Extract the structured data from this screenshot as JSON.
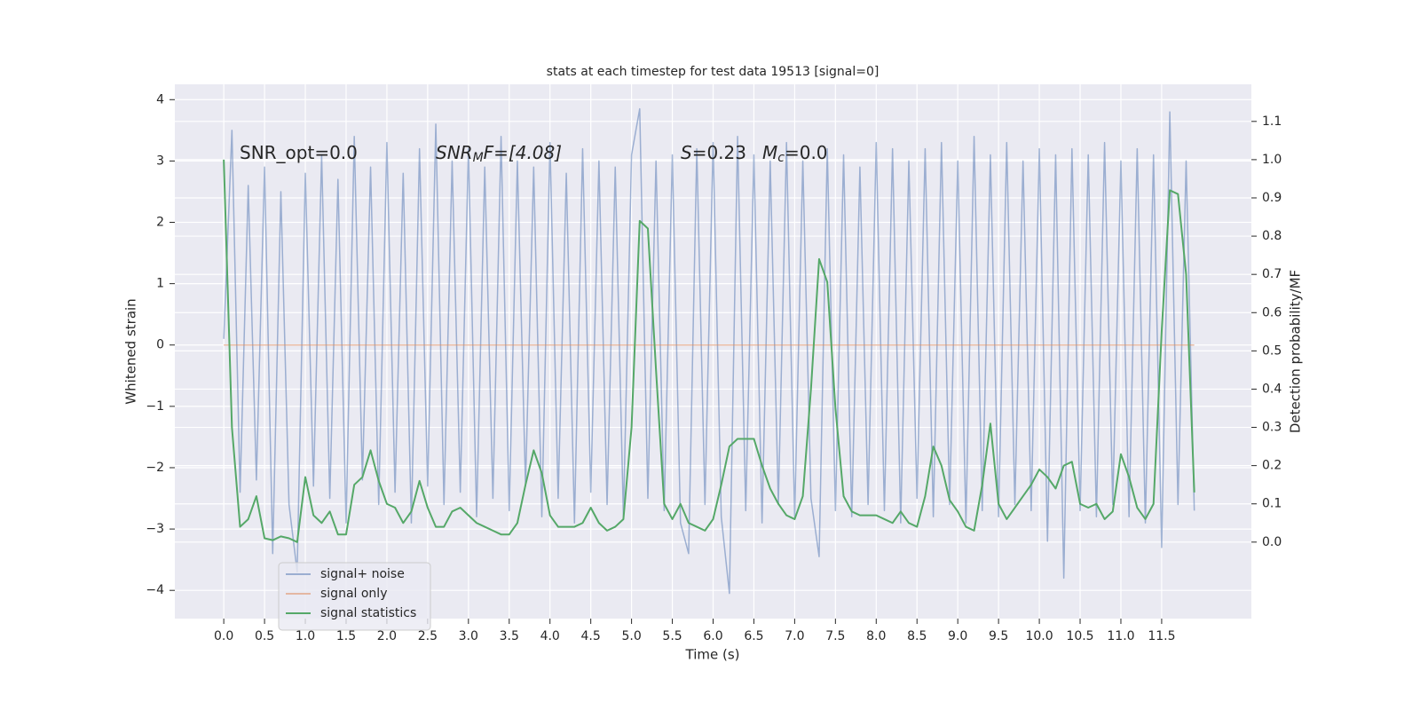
{
  "chart_data": {
    "type": "line",
    "title": "stats at each timestep for test data 19513 [signal=0]",
    "xlabel": "Time (s)",
    "ylabel": "Whitened strain",
    "y2label": "Detection probability/MF",
    "annotations": [
      [
        "SNR_opt=0.0"
      ],
      [
        "SNR",
        "M",
        "F=[4.08]"
      ],
      [
        "S",
        "=0.23"
      ],
      [
        "M",
        "c",
        "=0.0"
      ]
    ],
    "xlim": [
      -0.6,
      12.6
    ],
    "ylim": [
      -4.46,
      4.25
    ],
    "y2lim": [
      -0.2,
      1.197
    ],
    "xticks": [
      {
        "value": 0,
        "label": "0.0"
      },
      0.5,
      {
        "value": 1,
        "label": "1.0"
      },
      1.5,
      {
        "value": 2,
        "label": "2.0"
      },
      2.5,
      {
        "value": 3,
        "label": "3.0"
      },
      3.5,
      {
        "value": 4,
        "label": "4.0"
      },
      4.5,
      {
        "value": 5,
        "label": "5.0"
      },
      5.5,
      {
        "value": 6,
        "label": "6.0"
      },
      6.5,
      {
        "value": 7,
        "label": "7.0"
      },
      7.5,
      {
        "value": 8,
        "label": "8.0"
      },
      8.5,
      {
        "value": 9,
        "label": "9.0"
      },
      9.5,
      {
        "value": 10,
        "label": "10.0"
      },
      10.5,
      {
        "value": 11,
        "label": "11.0"
      },
      11.5
    ],
    "yticks": [
      {
        "value": -4,
        "label": "−4"
      },
      {
        "value": -3,
        "label": "−3"
      },
      {
        "value": -2,
        "label": "−2"
      },
      {
        "value": -1,
        "label": "−1"
      },
      0,
      1,
      2,
      3,
      4
    ],
    "y2ticks": [
      {
        "value": 0,
        "label": "0.0"
      },
      0.1,
      0.2,
      0.3,
      0.4,
      0.5,
      0.6,
      0.7,
      0.8,
      0.9,
      {
        "value": 1,
        "label": "1.0"
      },
      1.1
    ],
    "grid": true,
    "legend": "lower left",
    "x": [
      0.0,
      0.1,
      0.2,
      0.3,
      0.4,
      0.5,
      0.6,
      0.7,
      0.8,
      0.9,
      1.0,
      1.1,
      1.2,
      1.3,
      1.4,
      1.5,
      1.6,
      1.7,
      1.8,
      1.9,
      2.0,
      2.1,
      2.2,
      2.3,
      2.4,
      2.5,
      2.6,
      2.7,
      2.8,
      2.9,
      3.0,
      3.1,
      3.2,
      3.3,
      3.4,
      3.5,
      3.6,
      3.7,
      3.8,
      3.9,
      4.0,
      4.1,
      4.2,
      4.3,
      4.4,
      4.5,
      4.6,
      4.7,
      4.8,
      4.9,
      5.0,
      5.1,
      5.2,
      5.3,
      5.4,
      5.5,
      5.6,
      5.7,
      5.8,
      5.9,
      6.0,
      6.1,
      6.2,
      6.3,
      6.4,
      6.5,
      6.6,
      6.7,
      6.8,
      6.9,
      7.0,
      7.1,
      7.2,
      7.3,
      7.4,
      7.5,
      7.6,
      7.7,
      7.8,
      7.9,
      8.0,
      8.1,
      8.2,
      8.3,
      8.4,
      8.5,
      8.6,
      8.7,
      8.8,
      8.9,
      9.0,
      9.1,
      9.2,
      9.3,
      9.4,
      9.5,
      9.6,
      9.7,
      9.8,
      9.9,
      10.0,
      10.1,
      10.2,
      10.3,
      10.4,
      10.5,
      10.6,
      10.7,
      10.8,
      10.9,
      11.0,
      11.1,
      11.2,
      11.3,
      11.4,
      11.5,
      11.6,
      11.7,
      11.8,
      11.9
    ],
    "series": [
      {
        "name": "signal+ noise",
        "color": "#4c72b0",
        "opacity": 0.5,
        "values": [
          0.1,
          3.5,
          -2.4,
          2.6,
          -2.2,
          2.9,
          -3.4,
          2.5,
          -2.6,
          -3.7,
          2.8,
          -2.3,
          3.1,
          -2.5,
          2.7,
          -2.9,
          3.4,
          -2.2,
          2.9,
          -2.6,
          3.3,
          -2.4,
          2.8,
          -2.9,
          3.2,
          -2.3,
          3.6,
          -2.6,
          3.0,
          -2.4,
          3.2,
          -2.8,
          2.9,
          -2.5,
          3.4,
          -2.7,
          3.0,
          -2.3,
          2.9,
          -2.8,
          3.3,
          -2.5,
          2.8,
          -2.9,
          3.2,
          -2.4,
          3.0,
          -2.6,
          2.9,
          -2.8,
          3.1,
          3.85,
          -2.5,
          3.0,
          -2.7,
          3.1,
          -2.9,
          -3.4,
          3.2,
          -2.6,
          3.3,
          -2.8,
          -4.05,
          3.4,
          -2.7,
          3.1,
          -2.9,
          3.0,
          -2.6,
          3.3,
          -2.8,
          3.0,
          -2.5,
          -3.45,
          3.2,
          -2.7,
          3.1,
          -2.8,
          2.9,
          -2.6,
          3.3,
          -2.7,
          3.2,
          -2.9,
          3.0,
          -2.5,
          3.2,
          -2.8,
          3.3,
          -2.6,
          3.0,
          -2.9,
          3.4,
          -2.7,
          3.1,
          -2.8,
          3.3,
          -2.6,
          3.0,
          -2.7,
          3.2,
          -3.2,
          3.1,
          -3.8,
          3.2,
          -2.7,
          3.1,
          -2.8,
          3.3,
          -2.6,
          3.0,
          -2.8,
          3.2,
          -2.9,
          3.1,
          -3.3,
          3.8,
          -2.6,
          3.0,
          -2.7
        ]
      },
      {
        "name": "signal only",
        "color": "#dd8452",
        "opacity": 0.5,
        "values": [
          0,
          0,
          0,
          0,
          0,
          0,
          0,
          0,
          0,
          0,
          0,
          0,
          0,
          0,
          0,
          0,
          0,
          0,
          0,
          0,
          0,
          0,
          0,
          0,
          0,
          0,
          0,
          0,
          0,
          0,
          0,
          0,
          0,
          0,
          0,
          0,
          0,
          0,
          0,
          0,
          0,
          0,
          0,
          0,
          0,
          0,
          0,
          0,
          0,
          0,
          0,
          0,
          0,
          0,
          0,
          0,
          0,
          0,
          0,
          0,
          0,
          0,
          0,
          0,
          0,
          0,
          0,
          0,
          0,
          0,
          0,
          0,
          0,
          0,
          0,
          0,
          0,
          0,
          0,
          0,
          0,
          0,
          0,
          0,
          0,
          0,
          0,
          0,
          0,
          0,
          0,
          0,
          0,
          0,
          0,
          0,
          0,
          0,
          0,
          0,
          0,
          0,
          0,
          0,
          0,
          0,
          0,
          0,
          0,
          0,
          0,
          0,
          0,
          0,
          0,
          0,
          0,
          0,
          0,
          0
        ]
      },
      {
        "name": "signal statistics",
        "color": "#55a868",
        "opacity": 1,
        "axis": "y2",
        "values": [
          1.0,
          0.3,
          0.04,
          0.06,
          0.12,
          0.01,
          0.005,
          0.015,
          0.01,
          0.0,
          0.17,
          0.07,
          0.05,
          0.08,
          0.02,
          0.02,
          0.15,
          0.17,
          0.24,
          0.16,
          0.1,
          0.09,
          0.05,
          0.08,
          0.16,
          0.09,
          0.04,
          0.04,
          0.08,
          0.09,
          0.07,
          0.05,
          0.04,
          0.03,
          0.02,
          0.02,
          0.05,
          0.15,
          0.24,
          0.18,
          0.07,
          0.04,
          0.04,
          0.04,
          0.05,
          0.09,
          0.05,
          0.03,
          0.04,
          0.06,
          0.3,
          0.84,
          0.82,
          0.45,
          0.1,
          0.06,
          0.1,
          0.05,
          0.04,
          0.03,
          0.06,
          0.15,
          0.25,
          0.27,
          0.27,
          0.27,
          0.2,
          0.14,
          0.1,
          0.07,
          0.06,
          0.12,
          0.4,
          0.74,
          0.68,
          0.35,
          0.12,
          0.08,
          0.07,
          0.07,
          0.07,
          0.06,
          0.05,
          0.08,
          0.05,
          0.04,
          0.12,
          0.25,
          0.2,
          0.11,
          0.08,
          0.04,
          0.03,
          0.15,
          0.31,
          0.1,
          0.06,
          0.09,
          0.12,
          0.15,
          0.19,
          0.17,
          0.14,
          0.2,
          0.21,
          0.1,
          0.09,
          0.1,
          0.06,
          0.08,
          0.23,
          0.17,
          0.09,
          0.06,
          0.1,
          0.55,
          0.92,
          0.91,
          0.7,
          0.13
        ]
      }
    ]
  }
}
